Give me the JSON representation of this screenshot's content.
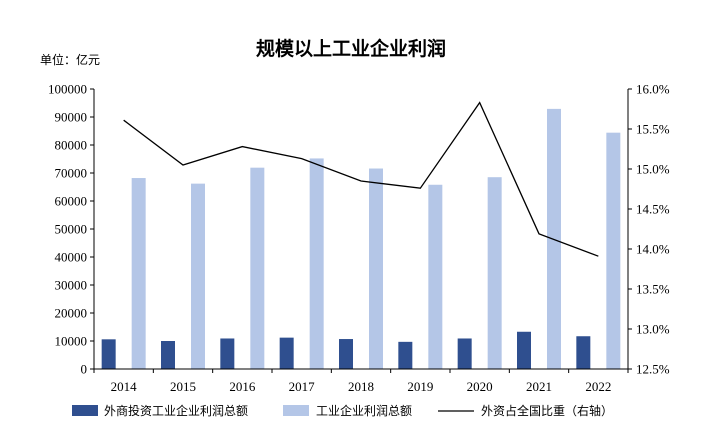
{
  "chart_data": {
    "type": "bar",
    "title": "规模以上工业企业利润",
    "unit_label": "单位：亿元",
    "categories": [
      "2014",
      "2015",
      "2016",
      "2017",
      "2018",
      "2019",
      "2020",
      "2021",
      "2022"
    ],
    "series": [
      {
        "name": "外商投资工业企业利润总额",
        "type": "bar",
        "axis": "left",
        "color": "#2f4f8f",
        "values": [
          10600,
          10000,
          10900,
          11200,
          10700,
          9700,
          10900,
          13300,
          11700
        ]
      },
      {
        "name": "工业企业利润总额",
        "type": "bar",
        "axis": "left",
        "color": "#b4c6e7",
        "values": [
          68200,
          66200,
          71900,
          75200,
          71600,
          65800,
          68500,
          92900,
          84400
        ]
      },
      {
        "name": "外资占全国比重（右轴）",
        "type": "line",
        "axis": "right",
        "color": "#000000",
        "values": [
          15.61,
          15.05,
          15.28,
          15.13,
          14.85,
          14.76,
          15.83,
          14.19,
          13.91
        ]
      }
    ],
    "y_left": {
      "min": 0,
      "max": 100000,
      "step": 10000,
      "ticks": [
        "0",
        "10000",
        "20000",
        "30000",
        "40000",
        "50000",
        "60000",
        "70000",
        "80000",
        "90000",
        "100000"
      ]
    },
    "y_right": {
      "min": 12.5,
      "max": 16.0,
      "step": 0.5,
      "ticks": [
        "12.5%",
        "13.0%",
        "13.5%",
        "14.0%",
        "14.5%",
        "15.0%",
        "15.5%",
        "16.0%"
      ]
    },
    "grid": false,
    "legend_position": "bottom"
  }
}
